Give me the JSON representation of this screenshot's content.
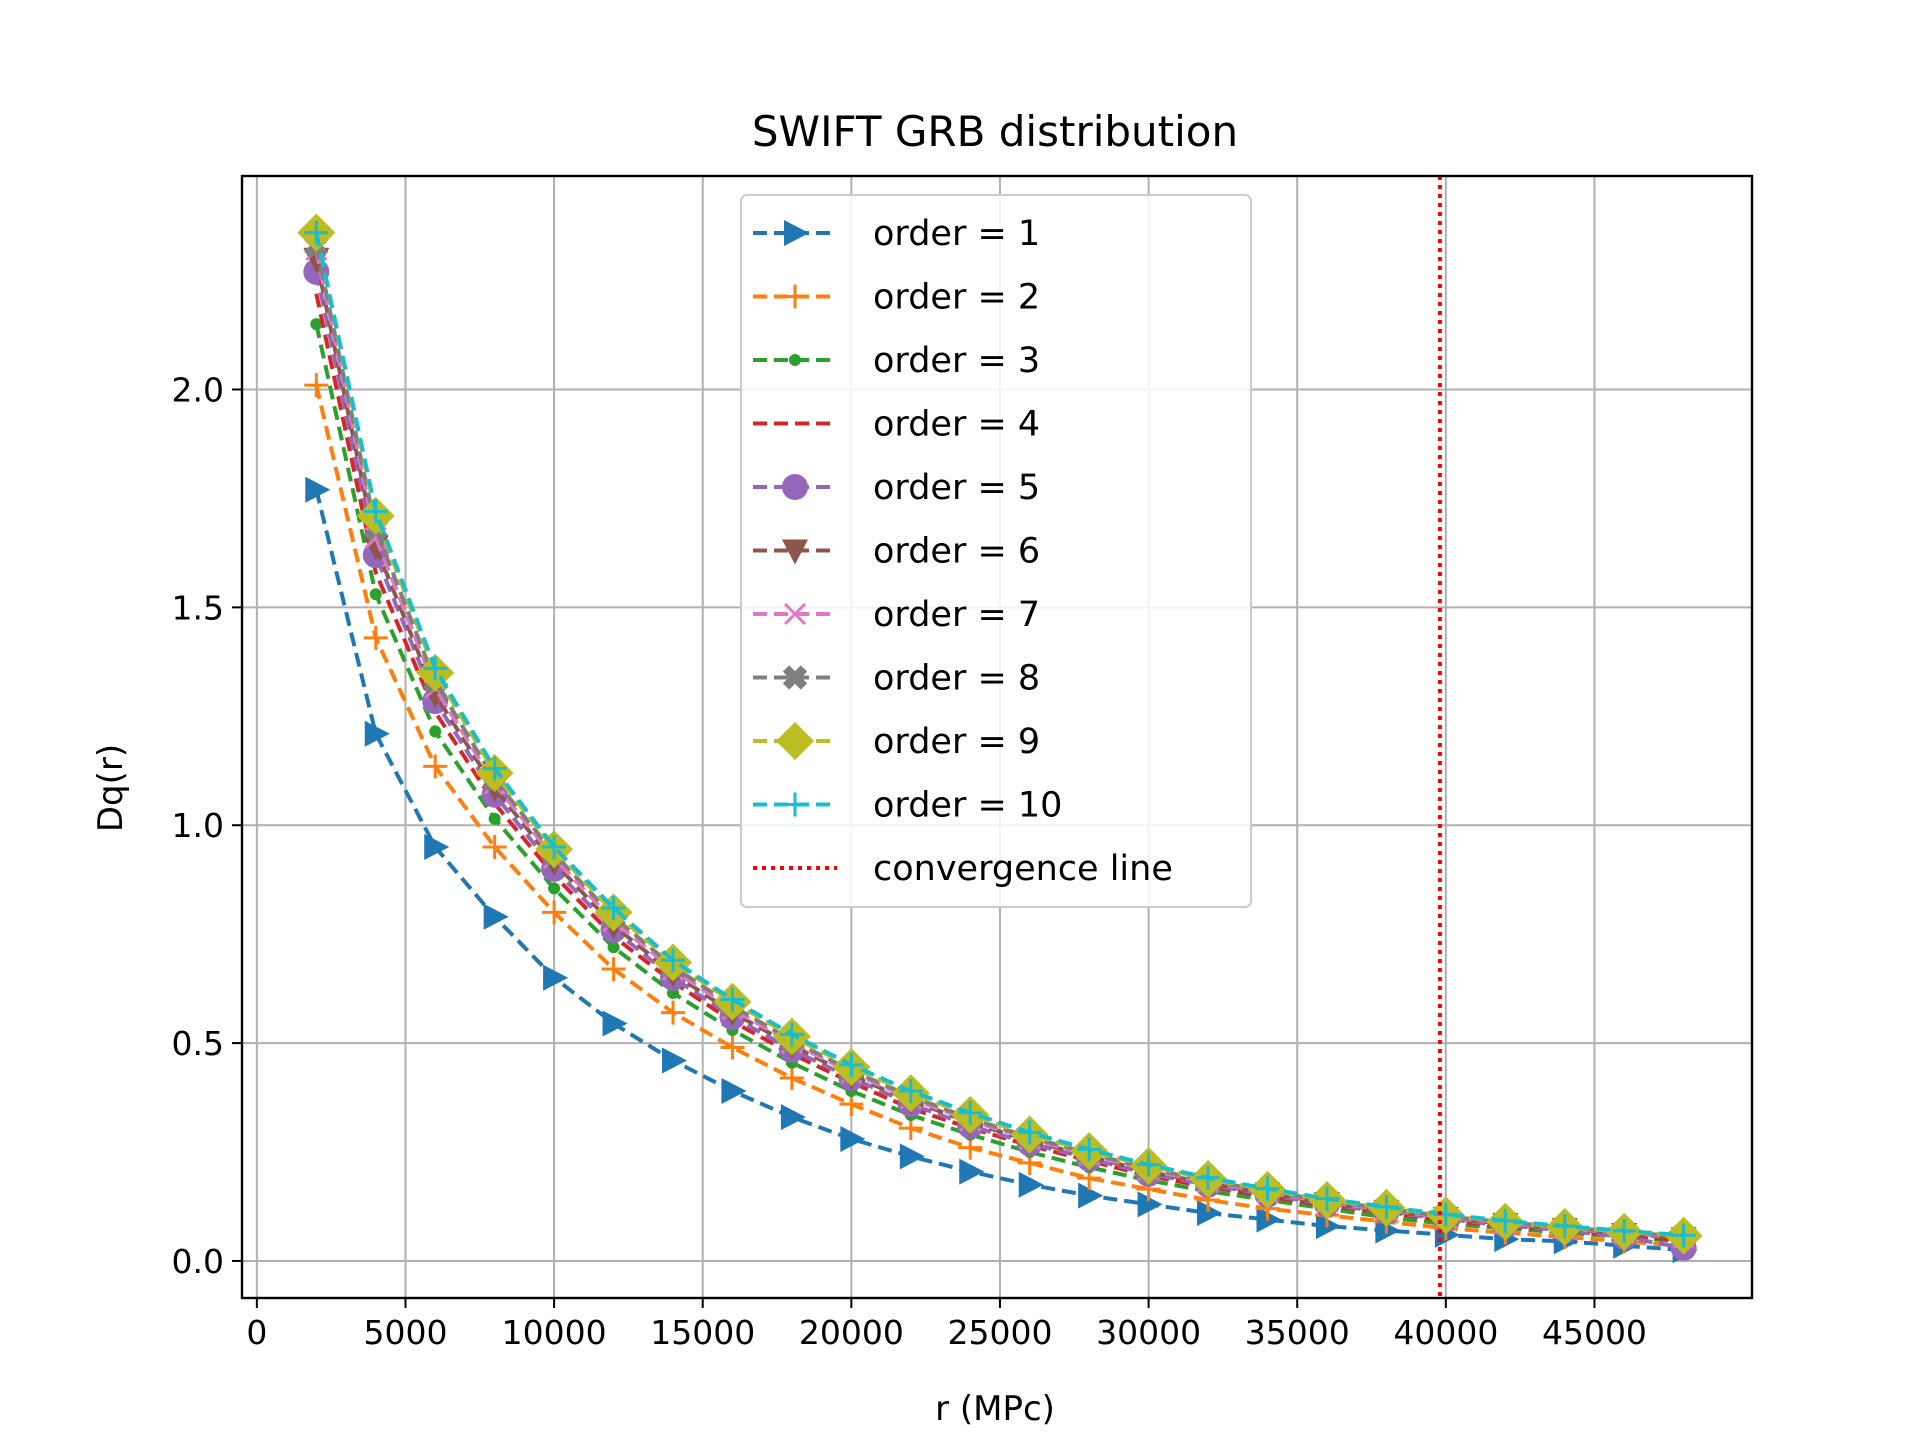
{
  "chart_data": {
    "type": "line",
    "title": "SWIFT GRB distribution",
    "xlabel": "r (MPc)",
    "ylabel": "Dq(r)",
    "xlim": [
      -500,
      50300
    ],
    "ylim": [
      -0.085,
      2.49
    ],
    "xticks": [
      0,
      5000,
      10000,
      15000,
      20000,
      25000,
      30000,
      35000,
      40000,
      45000
    ],
    "xtick_labels": [
      "0",
      "5000",
      "10000",
      "15000",
      "20000",
      "25000",
      "30000",
      "35000",
      "40000",
      "45000"
    ],
    "yticks": [
      0.0,
      0.5,
      1.0,
      1.5,
      2.0
    ],
    "ytick_labels": [
      "0.0",
      "0.5",
      "1.0",
      "1.5",
      "2.0"
    ],
    "grid": true,
    "legend_position": "upper-center",
    "x": [
      2000,
      4000,
      6000,
      8000,
      10000,
      12000,
      14000,
      16000,
      18000,
      20000,
      22000,
      24000,
      26000,
      28000,
      30000,
      32000,
      34000,
      36000,
      38000,
      40000,
      42000,
      44000,
      46000,
      48000
    ],
    "series": [
      {
        "name": "order = 1",
        "color": "#1f77b4",
        "marker": "triangle-right",
        "values": [
          1.77,
          1.21,
          0.95,
          0.79,
          0.65,
          0.545,
          0.46,
          0.39,
          0.33,
          0.28,
          0.24,
          0.205,
          0.175,
          0.15,
          0.13,
          0.11,
          0.095,
          0.08,
          0.07,
          0.06,
          0.05,
          0.045,
          0.035,
          0.025
        ]
      },
      {
        "name": "order = 2",
        "color": "#ff7f0e",
        "marker": "plus",
        "values": [
          2.01,
          1.43,
          1.135,
          0.95,
          0.8,
          0.67,
          0.57,
          0.49,
          0.42,
          0.36,
          0.305,
          0.26,
          0.225,
          0.19,
          0.165,
          0.14,
          0.12,
          0.105,
          0.09,
          0.075,
          0.065,
          0.055,
          0.045,
          0.035
        ]
      },
      {
        "name": "order = 3",
        "color": "#2ca02c",
        "marker": "point",
        "values": [
          2.15,
          1.53,
          1.215,
          1.015,
          0.855,
          0.72,
          0.615,
          0.53,
          0.455,
          0.39,
          0.335,
          0.29,
          0.25,
          0.215,
          0.185,
          0.16,
          0.14,
          0.12,
          0.1,
          0.085,
          0.075,
          0.065,
          0.055,
          0.045
        ]
      },
      {
        "name": "order = 4",
        "color": "#d62728",
        "marker": "none",
        "values": [
          2.22,
          1.58,
          1.26,
          1.05,
          0.885,
          0.745,
          0.64,
          0.55,
          0.475,
          0.41,
          0.35,
          0.305,
          0.265,
          0.23,
          0.195,
          0.17,
          0.148,
          0.127,
          0.11,
          0.093,
          0.08,
          0.07,
          0.058,
          0.048
        ]
      },
      {
        "name": "order = 5",
        "color": "#9467bd",
        "marker": "circle",
        "values": [
          2.27,
          1.62,
          1.285,
          1.07,
          0.9,
          0.76,
          0.65,
          0.56,
          0.485,
          0.42,
          0.36,
          0.31,
          0.27,
          0.235,
          0.2,
          0.175,
          0.152,
          0.13,
          0.112,
          0.096,
          0.082,
          0.07,
          0.055,
          0.03
        ]
      },
      {
        "name": "order = 6",
        "color": "#8c564b",
        "marker": "triangle-down",
        "values": [
          2.3,
          1.64,
          1.3,
          1.085,
          0.915,
          0.77,
          0.66,
          0.57,
          0.495,
          0.425,
          0.368,
          0.318,
          0.276,
          0.24,
          0.205,
          0.178,
          0.155,
          0.133,
          0.115,
          0.099,
          0.085,
          0.073,
          0.062,
          0.052
        ]
      },
      {
        "name": "order = 7",
        "color": "#e377c2",
        "marker": "x",
        "values": [
          2.32,
          1.66,
          1.315,
          1.095,
          0.925,
          0.78,
          0.668,
          0.578,
          0.5,
          0.432,
          0.373,
          0.322,
          0.28,
          0.243,
          0.209,
          0.181,
          0.157,
          0.135,
          0.117,
          0.1,
          0.087,
          0.075,
          0.064,
          0.054
        ]
      },
      {
        "name": "order = 8",
        "color": "#7f7f7f",
        "marker": "x-filled",
        "values": [
          2.33,
          1.68,
          1.33,
          1.105,
          0.935,
          0.79,
          0.676,
          0.585,
          0.506,
          0.437,
          0.378,
          0.327,
          0.284,
          0.247,
          0.212,
          0.184,
          0.16,
          0.138,
          0.12,
          0.102,
          0.089,
          0.077,
          0.066,
          0.056
        ]
      },
      {
        "name": "order = 9",
        "color": "#bcbd22",
        "marker": "diamond",
        "values": [
          2.36,
          1.71,
          1.35,
          1.12,
          0.945,
          0.8,
          0.685,
          0.595,
          0.515,
          0.445,
          0.385,
          0.335,
          0.29,
          0.252,
          0.218,
          0.188,
          0.163,
          0.14,
          0.122,
          0.105,
          0.09,
          0.078,
          0.067,
          0.058
        ]
      },
      {
        "name": "order = 10",
        "color": "#17becf",
        "marker": "plus",
        "values": [
          2.36,
          1.72,
          1.36,
          1.13,
          0.95,
          0.81,
          0.69,
          0.6,
          0.52,
          0.45,
          0.39,
          0.34,
          0.295,
          0.256,
          0.221,
          0.191,
          0.166,
          0.143,
          0.124,
          0.107,
          0.092,
          0.08,
          0.069,
          0.059
        ]
      }
    ],
    "reference_line": {
      "name": "convergence line",
      "color": "#ff0000",
      "orientation": "vertical",
      "x": 39800,
      "style": "dotted"
    }
  }
}
